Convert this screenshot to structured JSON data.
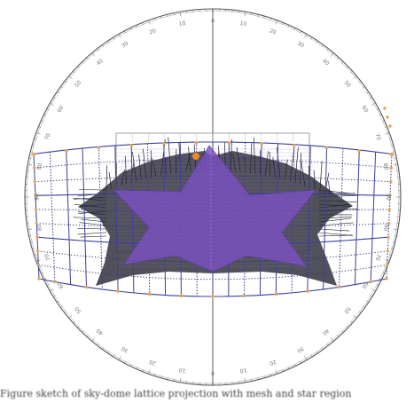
{
  "diagram": {
    "kind": "sky-dome projection with lattice grid and mesh",
    "colors": {
      "dome_outline": "#555555",
      "lattice_lines": "#3a3f9e",
      "lattice_dots": "#2e3470",
      "node_markers": "#e8a452",
      "mesh_fill": "#2c2c38",
      "mesh_strands": "#1e1e26",
      "star_fill": "#7a4fc0",
      "apex_marker": "#f08a20",
      "frame": "#8c8c8c"
    },
    "tick_labels": [
      "90",
      "80",
      "70",
      "60",
      "50",
      "40",
      "30",
      "20",
      "10",
      "0",
      "10",
      "20",
      "30",
      "40",
      "50",
      "60",
      "70",
      "80",
      "90"
    ],
    "caption": "Figure sketch of sky-dome lattice projection with mesh and star region"
  }
}
